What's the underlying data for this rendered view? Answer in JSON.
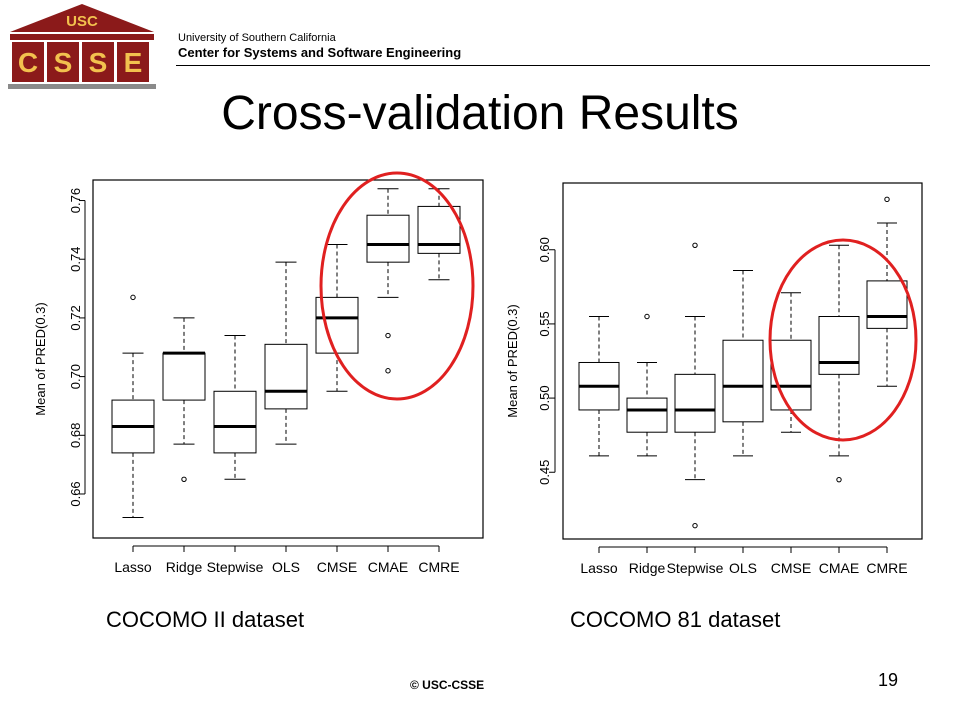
{
  "header": {
    "logo": {
      "text_top": "USC",
      "letters": [
        "C",
        "S",
        "S",
        "E"
      ],
      "colors": {
        "maroon": "#8B1A1A",
        "gold": "#F2C14E",
        "grey": "#8A8A8A"
      }
    },
    "university": "University of Southern California",
    "center": "Center for Systems and Software Engineering"
  },
  "slide": {
    "title": "Cross-validation Results",
    "captions": [
      "COCOMO II dataset",
      "COCOMO 81 dataset"
    ],
    "copyright": "© USC-CSSE",
    "page_number": "19"
  },
  "chart_data": [
    {
      "type": "boxplot",
      "ylabel": "Mean of PRED(0.3)",
      "ylim": [
        0.645,
        0.767
      ],
      "yticks": [
        0.66,
        0.68,
        0.7,
        0.72,
        0.74,
        0.76
      ],
      "ytick_labels": [
        "0.66",
        "0.68",
        "0.70",
        "0.72",
        "0.74",
        "0.76"
      ],
      "categories": [
        "Lasso",
        "Ridge",
        "Stepwise",
        "OLS",
        "CMSE",
        "CMAE",
        "CMRE"
      ],
      "boxes": [
        {
          "min": 0.652,
          "q1": 0.674,
          "median": 0.683,
          "q3": 0.692,
          "max": 0.708,
          "outliers": [
            0.727
          ]
        },
        {
          "min": 0.677,
          "q1": 0.692,
          "median": 0.708,
          "q3": 0.708,
          "max": 0.72,
          "outliers": [
            0.665
          ]
        },
        {
          "min": 0.665,
          "q1": 0.674,
          "median": 0.683,
          "q3": 0.695,
          "max": 0.714,
          "outliers": []
        },
        {
          "min": 0.677,
          "q1": 0.689,
          "median": 0.695,
          "q3": 0.711,
          "max": 0.739,
          "outliers": []
        },
        {
          "min": 0.695,
          "q1": 0.708,
          "median": 0.72,
          "q3": 0.727,
          "max": 0.745,
          "outliers": []
        },
        {
          "min": 0.727,
          "q1": 0.739,
          "median": 0.745,
          "q3": 0.755,
          "max": 0.764,
          "outliers": [
            0.714,
            0.702
          ]
        },
        {
          "min": 0.733,
          "q1": 0.742,
          "median": 0.745,
          "q3": 0.758,
          "max": 0.764,
          "outliers": []
        }
      ],
      "highlight": {
        "categories": [
          "CMSE",
          "CMAE",
          "CMRE"
        ],
        "color": "#E02020"
      }
    },
    {
      "type": "boxplot",
      "ylabel": "Mean of PRED(0.3)",
      "ylim": [
        0.405,
        0.645
      ],
      "yticks": [
        0.45,
        0.5,
        0.55,
        0.6
      ],
      "ytick_labels": [
        "0.45",
        "0.50",
        "0.55",
        "0.60"
      ],
      "categories": [
        "Lasso",
        "Ridge",
        "Stepwise",
        "OLS",
        "CMSE",
        "CMAE",
        "CMRE"
      ],
      "boxes": [
        {
          "min": 0.461,
          "q1": 0.492,
          "median": 0.508,
          "q3": 0.524,
          "max": 0.555,
          "outliers": []
        },
        {
          "min": 0.461,
          "q1": 0.477,
          "median": 0.492,
          "q3": 0.5,
          "max": 0.524,
          "outliers": [
            0.555
          ]
        },
        {
          "min": 0.445,
          "q1": 0.477,
          "median": 0.492,
          "q3": 0.516,
          "max": 0.555,
          "outliers": [
            0.603,
            0.414
          ]
        },
        {
          "min": 0.461,
          "q1": 0.484,
          "median": 0.508,
          "q3": 0.539,
          "max": 0.586,
          "outliers": []
        },
        {
          "min": 0.477,
          "q1": 0.492,
          "median": 0.508,
          "q3": 0.539,
          "max": 0.571,
          "outliers": []
        },
        {
          "min": 0.461,
          "q1": 0.516,
          "median": 0.524,
          "q3": 0.555,
          "max": 0.603,
          "outliers": [
            0.445
          ]
        },
        {
          "min": 0.508,
          "q1": 0.547,
          "median": 0.555,
          "q3": 0.579,
          "max": 0.618,
          "outliers": [
            0.634
          ]
        }
      ],
      "highlight": {
        "categories": [
          "CMSE",
          "CMAE",
          "CMRE"
        ],
        "color": "#E02020"
      }
    }
  ]
}
